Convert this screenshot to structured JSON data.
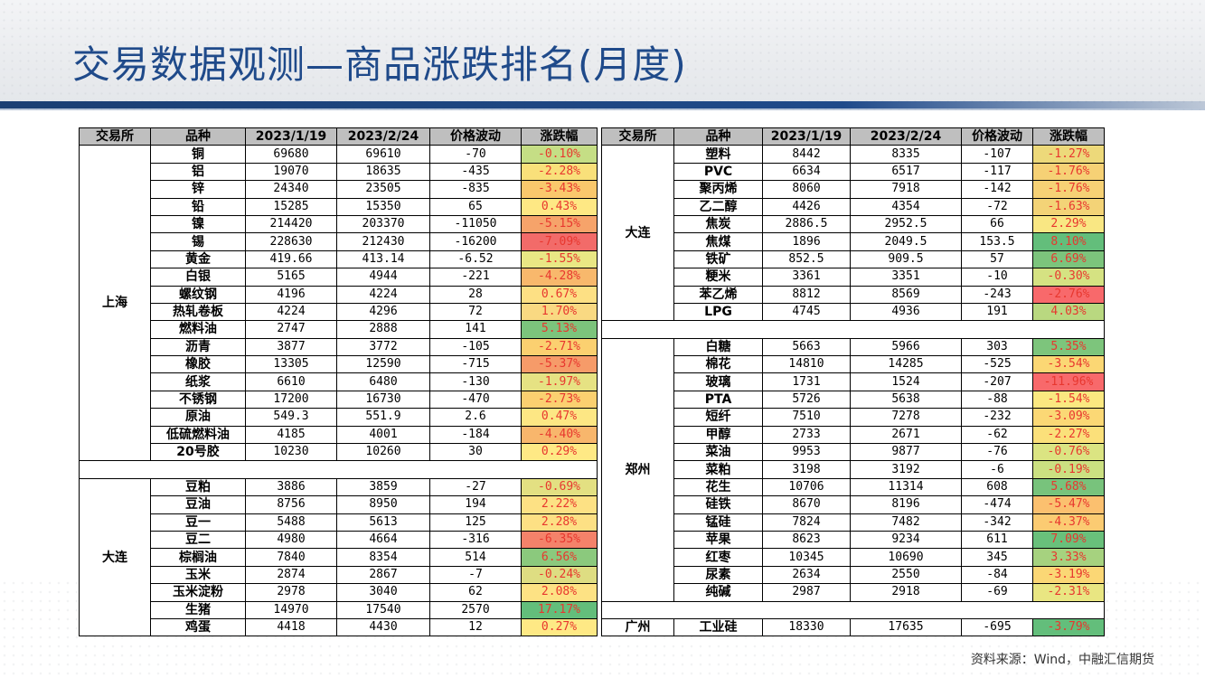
{
  "title": "交易数据观测—商品涨跌排名(月度)",
  "source": "资料来源：Wind，中融汇信期货",
  "headers": [
    "交易所",
    "品种",
    "2023/1/19",
    "2023/2/24",
    "价格波动",
    "涨跌幅"
  ],
  "left": [
    {
      "exchange": "上海",
      "rows": [
        {
          "name": "铜",
          "p1": "69680",
          "p2": "69610",
          "chg": "-70",
          "pct": "-0.10%",
          "color": "#c5de85"
        },
        {
          "name": "铝",
          "p1": "19070",
          "p2": "18635",
          "chg": "-435",
          "pct": "-2.28%",
          "color": "#f9e07a"
        },
        {
          "name": "锌",
          "p1": "24340",
          "p2": "23505",
          "chg": "-835",
          "pct": "-3.43%",
          "color": "#fac86c"
        },
        {
          "name": "铅",
          "p1": "15285",
          "p2": "15350",
          "chg": "65",
          "pct": "0.43%",
          "color": "#fee884"
        },
        {
          "name": "镍",
          "p1": "214420",
          "p2": "203370",
          "chg": "-11050",
          "pct": "-5.15%",
          "color": "#f6a36a"
        },
        {
          "name": "锡",
          "p1": "228630",
          "p2": "212430",
          "chg": "-16200",
          "pct": "-7.09%",
          "color": "#f26b69"
        },
        {
          "name": "黄金",
          "p1": "419.66",
          "p2": "413.14",
          "chg": "-6.52",
          "pct": "-1.55%",
          "color": "#e9e784"
        },
        {
          "name": "白银",
          "p1": "5165",
          "p2": "4944",
          "chg": "-221",
          "pct": "-4.28%",
          "color": "#f8b86c"
        },
        {
          "name": "螺纹钢",
          "p1": "4196",
          "p2": "4224",
          "chg": "28",
          "pct": "0.67%",
          "color": "#fde084"
        },
        {
          "name": "热轧卷板",
          "p1": "4224",
          "p2": "4296",
          "chg": "72",
          "pct": "1.70%",
          "color": "#f9d982"
        },
        {
          "name": "燃料油",
          "p1": "2747",
          "p2": "2888",
          "chg": "141",
          "pct": "5.13%",
          "color": "#7cc47c"
        },
        {
          "name": "沥青",
          "p1": "3877",
          "p2": "3772",
          "chg": "-105",
          "pct": "-2.71%",
          "color": "#fbd070"
        },
        {
          "name": "橡胶",
          "p1": "13305",
          "p2": "12590",
          "chg": "-715",
          "pct": "-5.37%",
          "color": "#f69b69"
        },
        {
          "name": "纸浆",
          "p1": "6610",
          "p2": "6480",
          "chg": "-130",
          "pct": "-1.97%",
          "color": "#e6e283"
        },
        {
          "name": "不锈钢",
          "p1": "17200",
          "p2": "16730",
          "chg": "-470",
          "pct": "-2.73%",
          "color": "#fbd070"
        },
        {
          "name": "原油",
          "p1": "549.3",
          "p2": "551.9",
          "chg": "2.6",
          "pct": "0.47%",
          "color": "#fde784"
        },
        {
          "name": "低硫燃料油",
          "p1": "4185",
          "p2": "4001",
          "chg": "-184",
          "pct": "-4.40%",
          "color": "#f8b66c"
        },
        {
          "name": "20号胶",
          "p1": "10230",
          "p2": "10260",
          "chg": "30",
          "pct": "0.29%",
          "color": "#fee985"
        }
      ]
    },
    {
      "exchange": "大连",
      "rows": [
        {
          "name": "豆粕",
          "p1": "3886",
          "p2": "3859",
          "chg": "-27",
          "pct": "-0.69%",
          "color": "#e3e082"
        },
        {
          "name": "豆油",
          "p1": "8756",
          "p2": "8950",
          "chg": "194",
          "pct": "2.22%",
          "color": "#fde184"
        },
        {
          "name": "豆一",
          "p1": "5488",
          "p2": "5613",
          "chg": "125",
          "pct": "2.28%",
          "color": "#fde084"
        },
        {
          "name": "豆二",
          "p1": "4980",
          "p2": "4664",
          "chg": "-316",
          "pct": "-6.35%",
          "color": "#f4826a"
        },
        {
          "name": "棕榈油",
          "p1": "7840",
          "p2": "8354",
          "chg": "514",
          "pct": "6.56%",
          "color": "#8bc97d"
        },
        {
          "name": "玉米",
          "p1": "2874",
          "p2": "2867",
          "chg": "-7",
          "pct": "-0.24%",
          "color": "#dedd82"
        },
        {
          "name": "玉米淀粉",
          "p1": "2978",
          "p2": "3040",
          "chg": "62",
          "pct": "2.08%",
          "color": "#fde284"
        },
        {
          "name": "生猪",
          "p1": "14970",
          "p2": "17540",
          "chg": "2570",
          "pct": "17.17%",
          "color": "#63be7b"
        },
        {
          "name": "鸡蛋",
          "p1": "4418",
          "p2": "4430",
          "chg": "12",
          "pct": "0.27%",
          "color": "#fee985"
        }
      ]
    }
  ],
  "right": [
    {
      "exchange": "大连",
      "rows": [
        {
          "name": "塑料",
          "p1": "8442",
          "p2": "8335",
          "chg": "-107",
          "pct": "-1.27%",
          "color": "#edd97a"
        },
        {
          "name": "PVC",
          "p1": "6634",
          "p2": "6517",
          "chg": "-117",
          "pct": "-1.76%",
          "color": "#f6d175"
        },
        {
          "name": "聚丙烯",
          "p1": "8060",
          "p2": "7918",
          "chg": "-142",
          "pct": "-1.76%",
          "color": "#f6d175"
        },
        {
          "name": "乙二醇",
          "p1": "4426",
          "p2": "4354",
          "chg": "-72",
          "pct": "-1.63%",
          "color": "#f3d377"
        },
        {
          "name": "焦炭",
          "p1": "2886.5",
          "p2": "2952.5",
          "chg": "66",
          "pct": "2.29%",
          "color": "#f9e783"
        },
        {
          "name": "焦煤",
          "p1": "1896",
          "p2": "2049.5",
          "chg": "153.5",
          "pct": "8.10%",
          "color": "#63be7b"
        },
        {
          "name": "铁矿",
          "p1": "852.5",
          "p2": "909.5",
          "chg": "57",
          "pct": "6.69%",
          "color": "#7cc47c"
        },
        {
          "name": "粳米",
          "p1": "3361",
          "p2": "3351",
          "chg": "-10",
          "pct": "-0.30%",
          "color": "#d5e282"
        },
        {
          "name": "苯乙烯",
          "p1": "8812",
          "p2": "8569",
          "chg": "-243",
          "pct": "-2.76%",
          "color": "#f8696b"
        },
        {
          "name": "LPG",
          "p1": "4745",
          "p2": "4936",
          "chg": "191",
          "pct": "4.03%",
          "color": "#b9d880"
        }
      ]
    },
    {
      "exchange": "郑州",
      "rows": [
        {
          "name": "白糖",
          "p1": "5663",
          "p2": "5966",
          "chg": "303",
          "pct": "5.35%",
          "color": "#7dc57c"
        },
        {
          "name": "棉花",
          "p1": "14810",
          "p2": "14285",
          "chg": "-525",
          "pct": "-3.54%",
          "color": "#fbd774"
        },
        {
          "name": "玻璃",
          "p1": "1731",
          "p2": "1524",
          "chg": "-207",
          "pct": "-11.96%",
          "color": "#f8696b"
        },
        {
          "name": "PTA",
          "p1": "5726",
          "p2": "5638",
          "chg": "-88",
          "pct": "-1.54%",
          "color": "#fbe880"
        },
        {
          "name": "短纤",
          "p1": "7510",
          "p2": "7278",
          "chg": "-232",
          "pct": "-3.09%",
          "color": "#fbd875"
        },
        {
          "name": "甲醇",
          "p1": "2733",
          "p2": "2671",
          "chg": "-62",
          "pct": "-2.27%",
          "color": "#fbe07a"
        },
        {
          "name": "菜油",
          "p1": "9953",
          "p2": "9877",
          "chg": "-76",
          "pct": "-0.76%",
          "color": "#dbe482"
        },
        {
          "name": "菜粕",
          "p1": "3198",
          "p2": "3192",
          "chg": "-6",
          "pct": "-0.19%",
          "color": "#cbe081"
        },
        {
          "name": "花生",
          "p1": "10706",
          "p2": "11314",
          "chg": "608",
          "pct": "5.68%",
          "color": "#78c37c"
        },
        {
          "name": "硅铁",
          "p1": "8670",
          "p2": "8196",
          "chg": "-474",
          "pct": "-5.47%",
          "color": "#fbc06f"
        },
        {
          "name": "锰硅",
          "p1": "7824",
          "p2": "7482",
          "chg": "-342",
          "pct": "-4.37%",
          "color": "#fbcb72"
        },
        {
          "name": "苹果",
          "p1": "8623",
          "p2": "9234",
          "chg": "611",
          "pct": "7.09%",
          "color": "#69c07b"
        },
        {
          "name": "红枣",
          "p1": "10345",
          "p2": "10690",
          "chg": "345",
          "pct": "3.33%",
          "color": "#a6d27f"
        },
        {
          "name": "尿素",
          "p1": "2634",
          "p2": "2550",
          "chg": "-84",
          "pct": "-3.19%",
          "color": "#fbd775"
        },
        {
          "name": "纯碱",
          "p1": "2987",
          "p2": "2918",
          "chg": "-69",
          "pct": "-2.31%",
          "color": "#e9e682"
        }
      ]
    },
    {
      "exchange": "广州",
      "rows": [
        {
          "name": "工业硅",
          "p1": "18330",
          "p2": "17635",
          "chg": "-695",
          "pct": "-3.79%",
          "color": "#63be7b"
        }
      ]
    }
  ]
}
